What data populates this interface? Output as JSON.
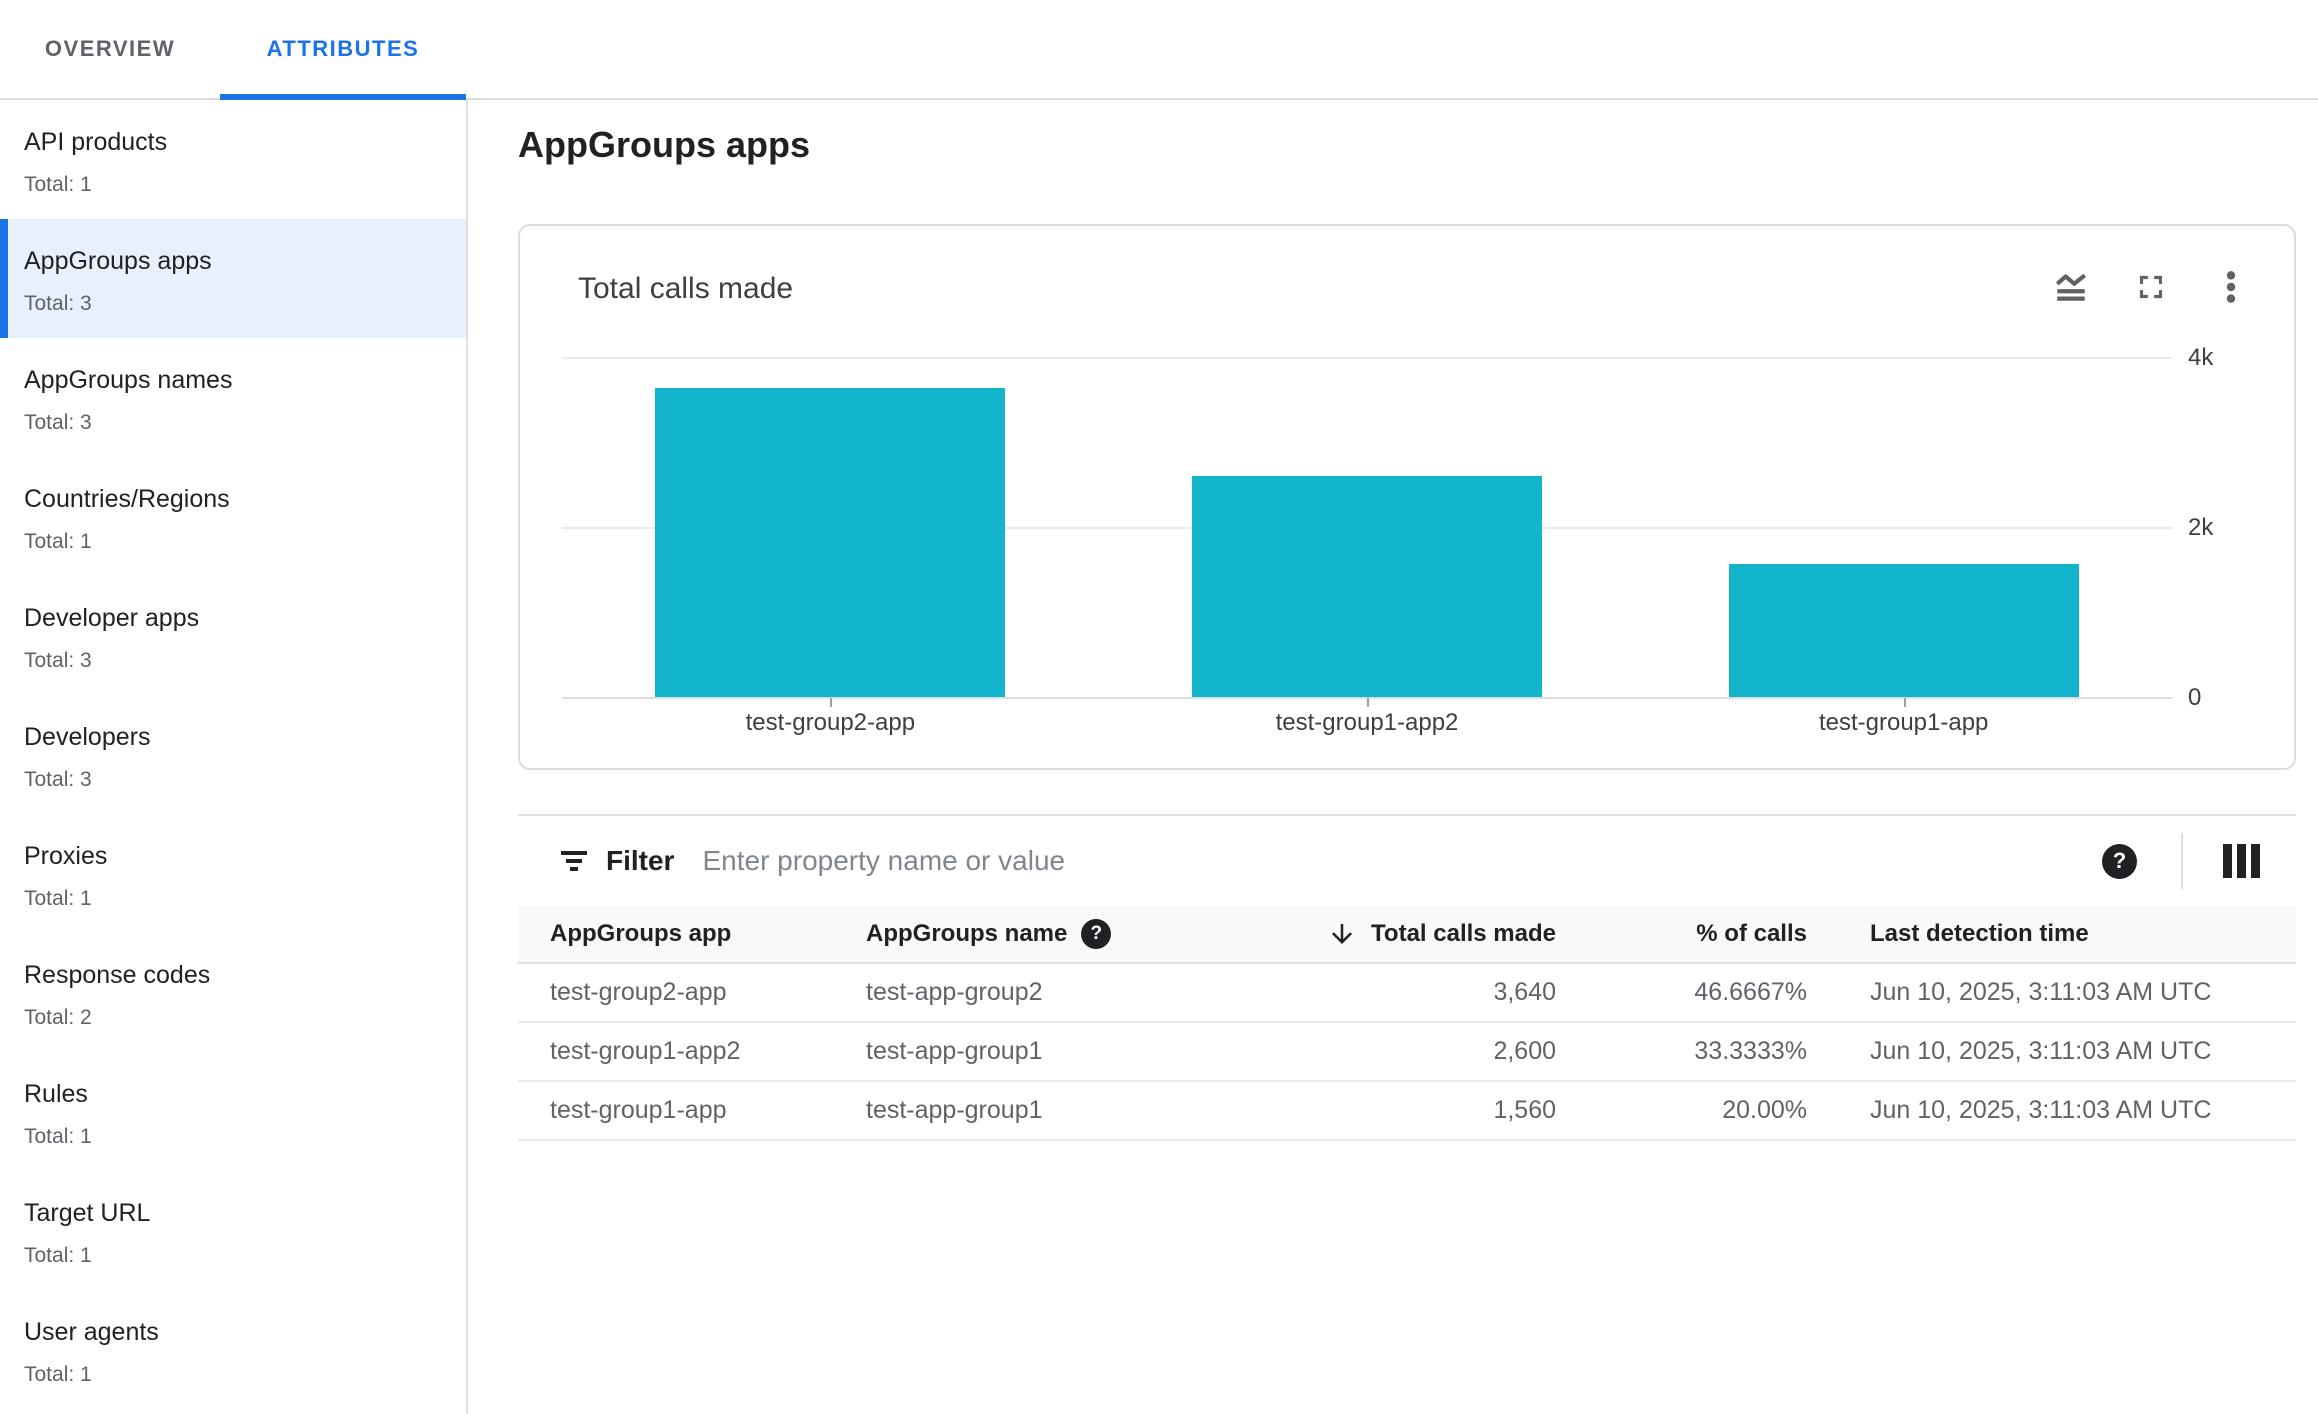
{
  "tab_bar": {
    "active_index": 1,
    "tabs": [
      {
        "label": "OVERVIEW"
      },
      {
        "label": "ATTRIBUTES"
      }
    ]
  },
  "sidebar": {
    "items": [
      {
        "label": "API products",
        "total": "Total: 1",
        "selected": false
      },
      {
        "label": "AppGroups apps",
        "total": "Total: 3",
        "selected": true
      },
      {
        "label": "AppGroups names",
        "total": "Total: 3",
        "selected": false
      },
      {
        "label": "Countries/Regions",
        "total": "Total: 1",
        "selected": false
      },
      {
        "label": "Developer apps",
        "total": "Total: 3",
        "selected": false
      },
      {
        "label": "Developers",
        "total": "Total: 3",
        "selected": false
      },
      {
        "label": "Proxies",
        "total": "Total: 1",
        "selected": false
      },
      {
        "label": "Response codes",
        "total": "Total: 2",
        "selected": false
      },
      {
        "label": "Rules",
        "total": "Total: 1",
        "selected": false
      },
      {
        "label": "Target URL",
        "total": "Total: 1",
        "selected": false
      },
      {
        "label": "User agents",
        "total": "Total: 1",
        "selected": false
      }
    ]
  },
  "main": {
    "page_title": "AppGroups apps",
    "card": {
      "title": "Total calls made",
      "icons": [
        "chart-type-icon",
        "fullscreen-icon",
        "kebab-menu-icon"
      ]
    },
    "filter": {
      "label": "Filter",
      "placeholder": "Enter property name or value"
    },
    "table": {
      "columns": [
        "AppGroups app",
        "AppGroups name",
        "Total calls made",
        "% of calls",
        "Last detection time"
      ],
      "sorted_column": "Total calls made",
      "sort_direction": "descending",
      "rows": [
        [
          "test-group2-app",
          "test-app-group2",
          "3,640",
          "46.6667%",
          "Jun 10, 2025, 3:11:03 AM UTC"
        ],
        [
          "test-group1-app2",
          "test-app-group1",
          "2,600",
          "33.3333%",
          "Jun 10, 2025, 3:11:03 AM UTC"
        ],
        [
          "test-group1-app",
          "test-app-group1",
          "1,560",
          "20.00%",
          "Jun 10, 2025, 3:11:03 AM UTC"
        ]
      ]
    }
  },
  "chart_data": {
    "type": "bar",
    "title": "Total calls made",
    "categories": [
      "test-group2-app",
      "test-group1-app2",
      "test-group1-app"
    ],
    "values": [
      3640,
      2600,
      1560
    ],
    "xlabel": "",
    "ylabel": "",
    "ylim": [
      0,
      4000
    ],
    "yticks": [
      {
        "value": 4000,
        "label": "4k"
      },
      {
        "value": 2000,
        "label": "2k"
      },
      {
        "value": 0,
        "label": "0"
      }
    ],
    "bar_color": "#12b5cb",
    "grid": "horizontal",
    "legend": "none"
  },
  "colors": {
    "accent_blue": "#1a73e8",
    "selected_item_bg": "#e8f0fe",
    "bar_teal": "#12b5cb",
    "text_primary": "#202124",
    "text_secondary": "#5f6368",
    "border": "#dadce0",
    "table_header_bg": "#f8f9fa"
  }
}
